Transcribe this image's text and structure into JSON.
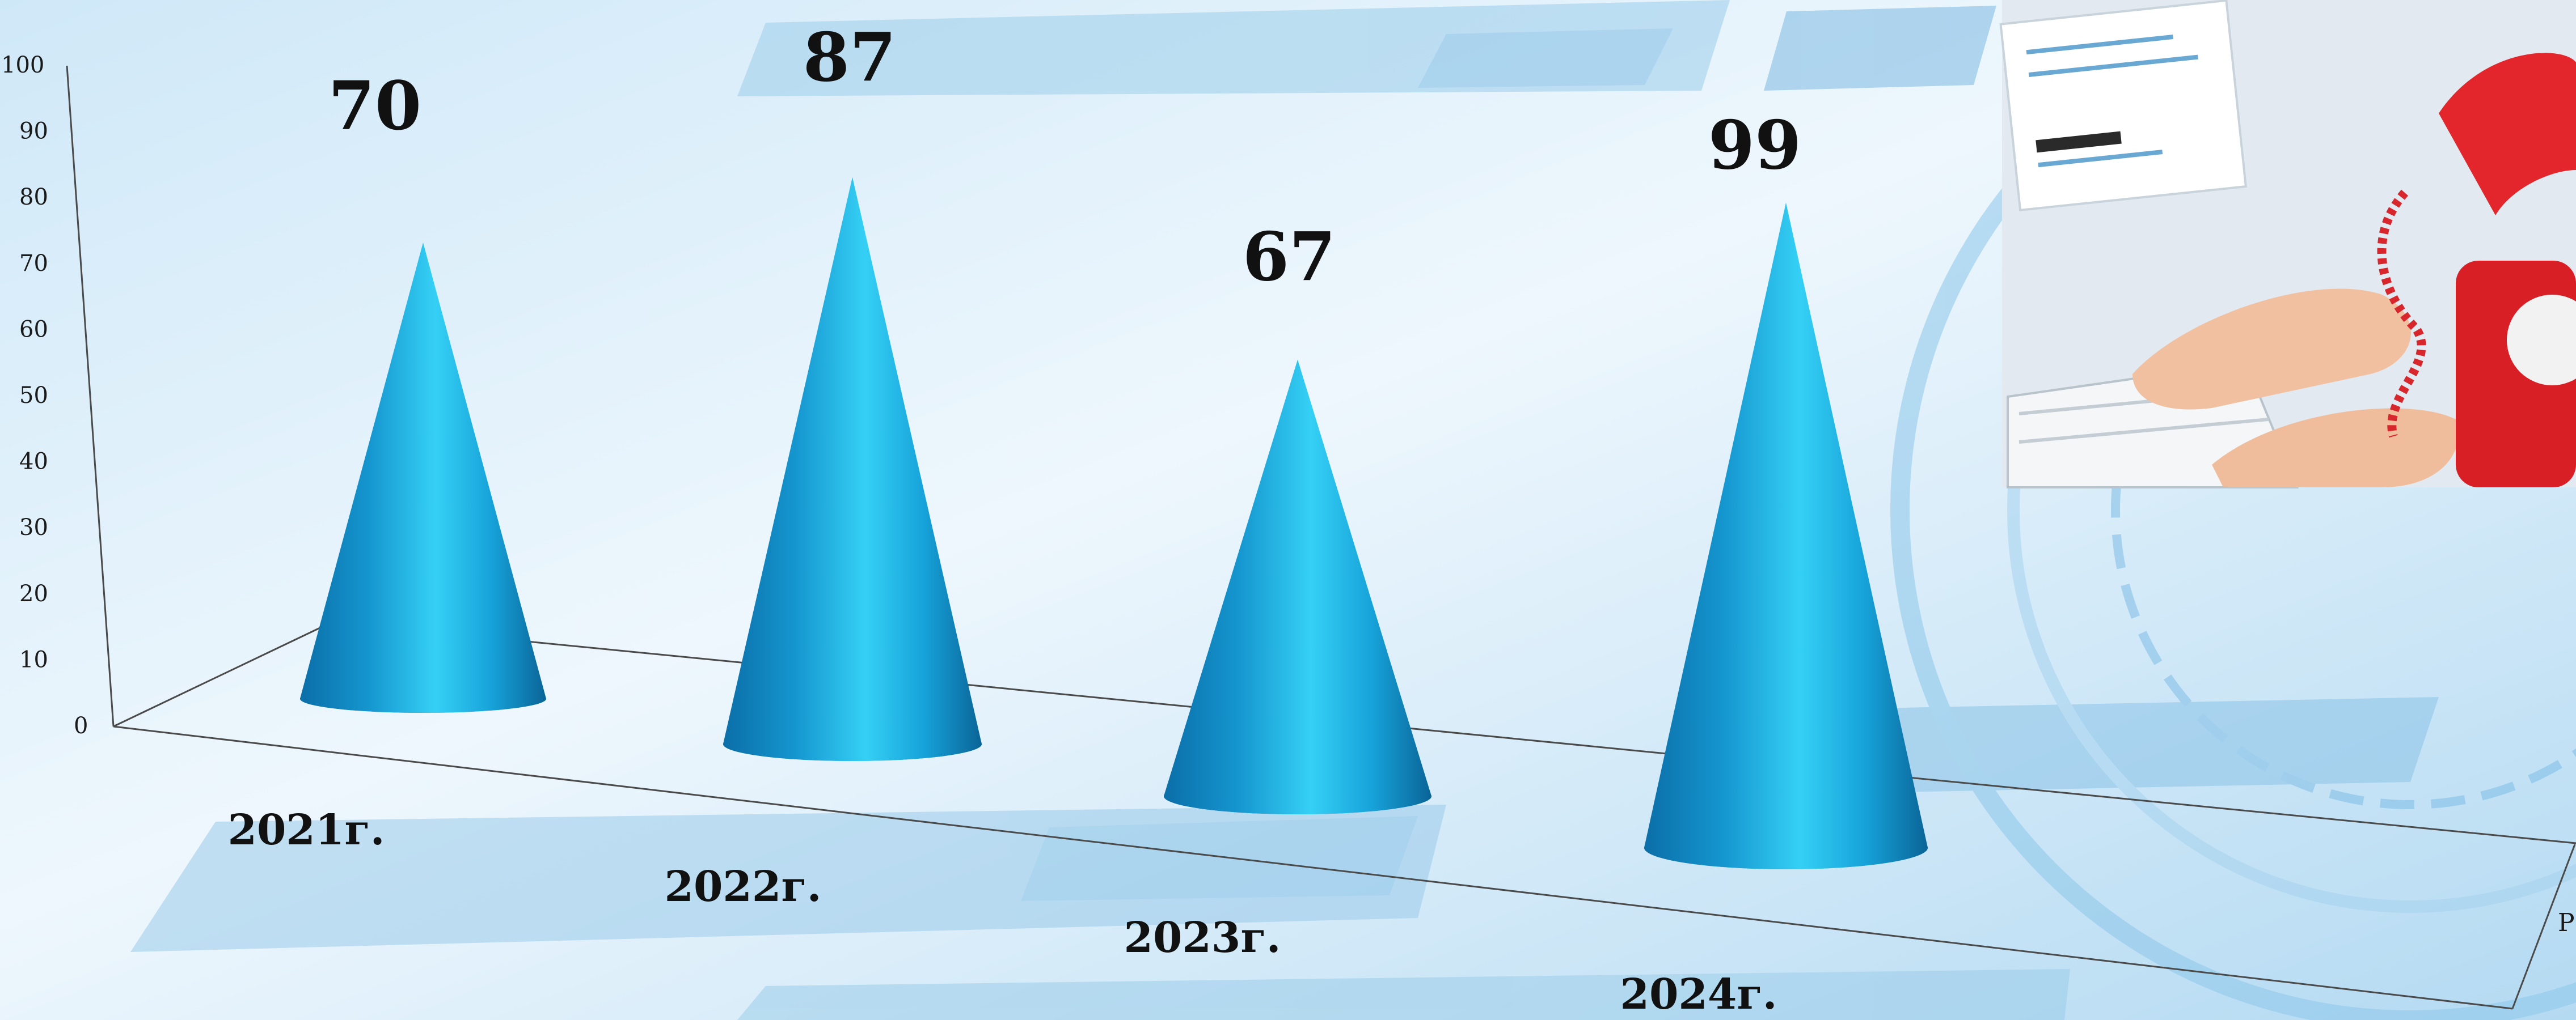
{
  "chart_data": {
    "type": "bar",
    "categories": [
      "2021г.",
      "2022г.",
      "2023г.",
      "2024г."
    ],
    "values": [
      70,
      87,
      67,
      99
    ],
    "ylim": [
      0,
      100
    ],
    "yticks": [
      "0",
      "10",
      "20",
      "30",
      "40",
      "50",
      "60",
      "70",
      "80",
      "90",
      "100"
    ],
    "partial_series_label": "Р",
    "bar_color": "#1aa6dc"
  }
}
